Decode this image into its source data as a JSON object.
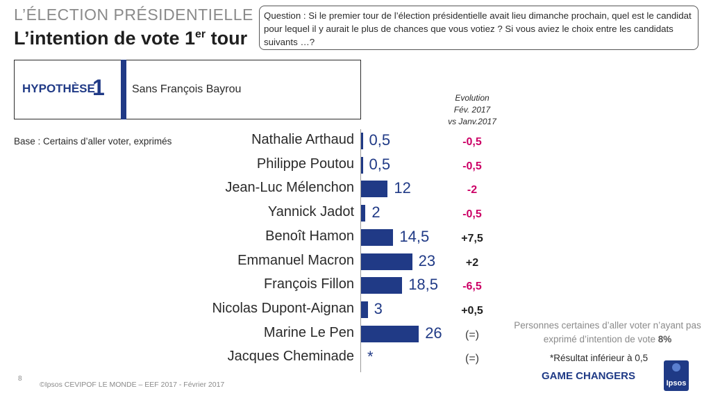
{
  "header": {
    "supertitle": "L’ÉLECTION PRÉSIDENTIELLE",
    "title_main": "L’intention de vote 1",
    "title_sup": "er",
    "title_end": " tour"
  },
  "question": "Question : Si le premier tour de l’élection présidentielle avait lieu dimanche prochain, quel est le candidat pour lequel il y aurait le plus de chances que vous votiez ?  Si vous aviez le choix entre les candidats suivants …?",
  "hypothesis": {
    "label": "HYPOTHÈSE",
    "number": "1",
    "description": "Sans François Bayrou"
  },
  "base": "Base : Certains d’aller voter, exprimés",
  "evolution_header": [
    "Evolution",
    "Fév. 2017",
    "vs Janv.2017"
  ],
  "chart_data": {
    "type": "bar",
    "orientation": "horizontal",
    "categories": [
      "Nathalie Arthaud",
      "Philippe Poutou",
      "Jean-Luc Mélenchon",
      "Yannick Jadot",
      "Benoît Hamon",
      "Emmanuel Macron",
      "François Fillon",
      "Nicolas Dupont-Aignan",
      "Marine Le Pen",
      "Jacques Cheminade"
    ],
    "values": [
      0.5,
      0.5,
      12,
      2,
      14.5,
      23,
      18.5,
      3,
      26,
      null
    ],
    "value_labels": [
      "0,5",
      "0,5",
      "12",
      "2",
      "14,5",
      "23",
      "18,5",
      "3",
      "26",
      "*"
    ],
    "evolution": [
      "-0,5",
      "-0,5",
      "-2",
      "-0,5",
      "+7,5",
      "+2",
      "-6,5",
      "+0,5",
      "(=)",
      "(=)"
    ],
    "colors": {
      "bar": "#203a86",
      "negative": "#cc0066",
      "positive": "#1f1f1f"
    }
  },
  "note": {
    "text": "Personnes certaines d’aller voter n’ayant pas exprimé d’intention de vote ",
    "value": "8%"
  },
  "footnote": "*Résultat inférieur à 0,5",
  "footer": {
    "page": "8",
    "source": "©Ipsos  CEVIPOF LE MONDE – EEF 2017 - Février 2017",
    "brand": "GAME CHANGERS",
    "logo": "Ipsos"
  }
}
